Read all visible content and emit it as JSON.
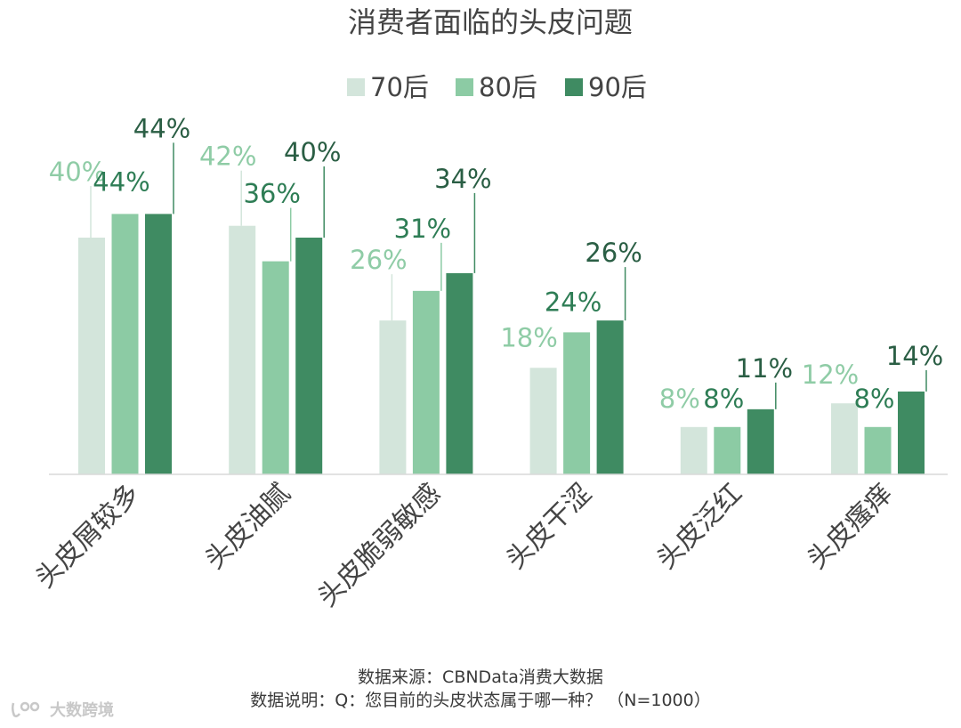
{
  "chart_data": {
    "type": "bar",
    "title": "消费者面临的头皮问题",
    "categories": [
      "头皮屑较多",
      "头皮油腻",
      "头皮脆弱敏感",
      "头皮干涩",
      "头皮泛红",
      "头皮瘙痒"
    ],
    "series": [
      {
        "name": "70后",
        "values": [
          40,
          42,
          26,
          18,
          8,
          12
        ],
        "labels": [
          "40%",
          "42%",
          "26%",
          "18%",
          "8%",
          "12%"
        ],
        "color": "#d3e5db",
        "label_color": "#8fcca6"
      },
      {
        "name": "80后",
        "values": [
          44,
          36,
          31,
          24,
          8,
          8
        ],
        "labels": [
          "44%",
          "36%",
          "31%",
          "24%",
          "8%",
          "8%"
        ],
        "color": "#8ccba4",
        "label_color": "#2e7d55"
      },
      {
        "name": "90后",
        "values": [
          44,
          40,
          34,
          26,
          11,
          14
        ],
        "labels": [
          "44%",
          "40%",
          "34%",
          "26%",
          "11%",
          "14%"
        ],
        "color": "#3f8b62",
        "label_color": "#2a5e44"
      }
    ],
    "legend_position": "top",
    "grid": false,
    "ylim": [
      0,
      50
    ],
    "xlabel": "",
    "ylabel": ""
  },
  "footer": {
    "source": "数据来源：CBNData消费大数据",
    "note": "数据说明：Q：您目前的头皮状态属于哪一种？ （N=1000）"
  },
  "watermark": {
    "text": "大数跨境",
    "icon": "brand-logo-icon"
  }
}
